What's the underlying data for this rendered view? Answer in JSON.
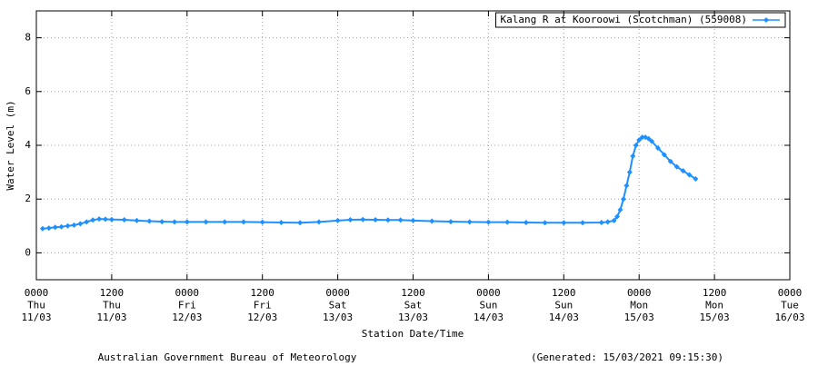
{
  "chart_data": {
    "type": "line",
    "ylabel": "Water Level (m)",
    "xlabel": "Station Date/Time",
    "footer_left": "Australian Government Bureau of Meteorology",
    "footer_right": "(Generated: 15/03/2021 09:15:30)",
    "x": [
      1,
      2,
      3,
      4,
      5,
      6,
      7,
      8,
      9,
      10,
      11,
      12,
      14,
      16,
      18,
      20,
      22,
      24,
      27,
      30,
      33,
      36,
      39,
      42,
      45,
      48,
      50,
      52,
      54,
      56,
      58,
      60,
      63,
      66,
      69,
      72,
      75,
      78,
      81,
      84,
      87,
      90,
      91,
      92,
      92.5,
      93,
      93.5,
      94,
      94.5,
      95,
      95.5,
      96,
      96.5,
      97,
      97.5,
      98,
      99,
      100,
      101,
      102,
      103,
      104,
      105
    ],
    "series": [
      {
        "name": "Kalang R at Kooroowi (Scotchman) (559008)",
        "color": "#1e90ff",
        "values": [
          0.9,
          0.92,
          0.95,
          0.97,
          1.0,
          1.03,
          1.08,
          1.15,
          1.22,
          1.26,
          1.25,
          1.24,
          1.23,
          1.2,
          1.18,
          1.16,
          1.15,
          1.15,
          1.15,
          1.15,
          1.15,
          1.14,
          1.13,
          1.12,
          1.15,
          1.2,
          1.23,
          1.24,
          1.23,
          1.22,
          1.22,
          1.2,
          1.18,
          1.16,
          1.15,
          1.14,
          1.14,
          1.13,
          1.12,
          1.12,
          1.12,
          1.13,
          1.15,
          1.2,
          1.35,
          1.6,
          2.0,
          2.5,
          3.0,
          3.6,
          4.0,
          4.2,
          4.3,
          4.3,
          4.25,
          4.15,
          3.9,
          3.65,
          3.4,
          3.2,
          3.05,
          2.9,
          2.75
        ]
      }
    ],
    "xlim": [
      0,
      120
    ],
    "xticks": [
      {
        "value": 0,
        "label": "0000\nThu\n11/03"
      },
      {
        "value": 12,
        "label": "1200\nThu\n11/03"
      },
      {
        "value": 24,
        "label": "0000\nFri\n12/03"
      },
      {
        "value": 36,
        "label": "1200\nFri\n12/03"
      },
      {
        "value": 48,
        "label": "0000\nSat\n13/03"
      },
      {
        "value": 60,
        "label": "1200\nSat\n13/03"
      },
      {
        "value": 72,
        "label": "0000\nSun\n14/03"
      },
      {
        "value": 84,
        "label": "1200\nSun\n14/03"
      },
      {
        "value": 96,
        "label": "0000\nMon\n15/03"
      },
      {
        "value": 108,
        "label": "1200\nMon\n15/03"
      },
      {
        "value": 120,
        "label": "0000\nTue\n16/03"
      }
    ],
    "ylim": [
      -1,
      9
    ],
    "yticks": [
      0,
      2,
      4,
      6,
      8
    ],
    "grid": true,
    "legend": "top-right"
  }
}
